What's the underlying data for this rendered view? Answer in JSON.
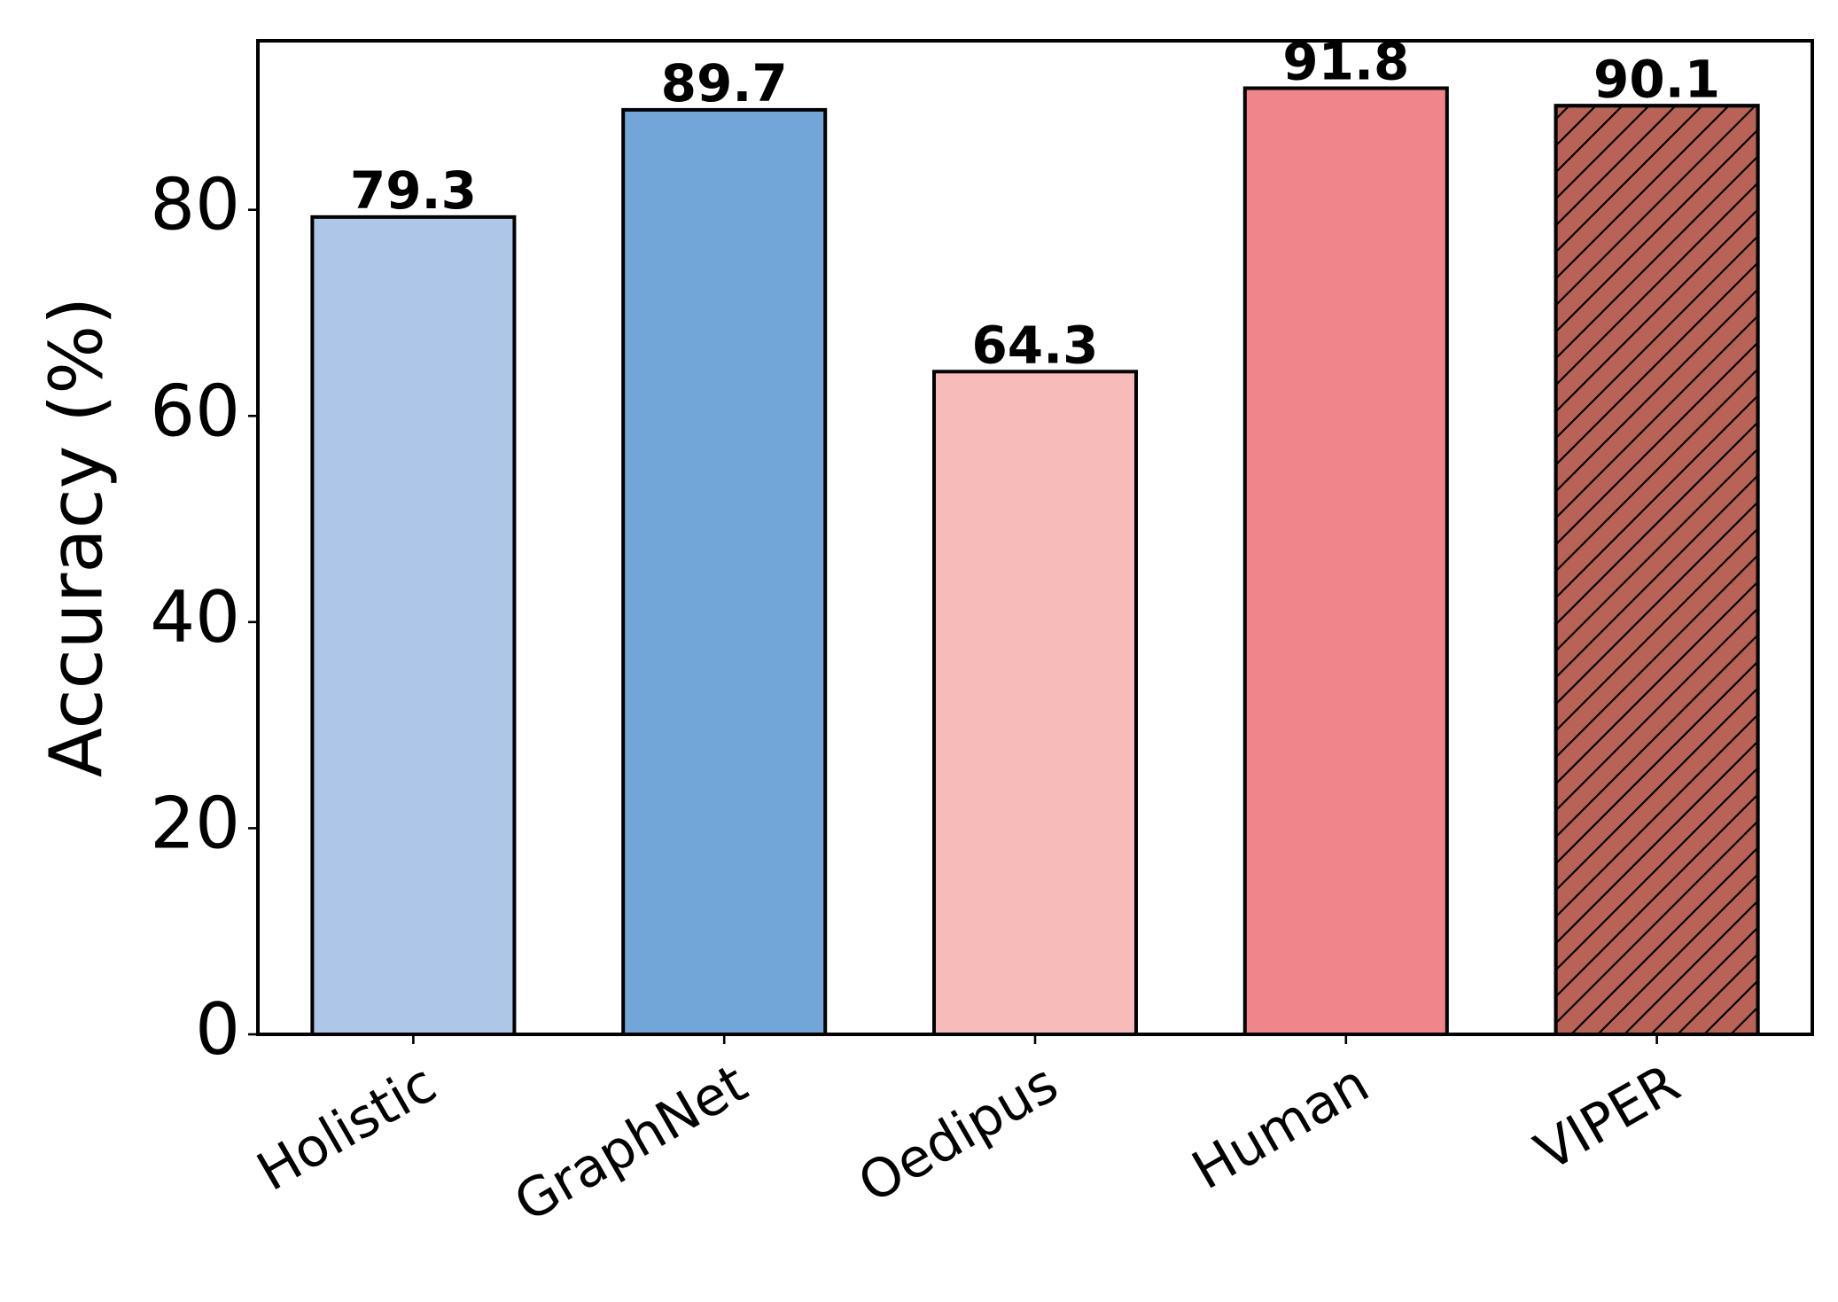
{
  "chart_data": {
    "type": "bar",
    "y_label": "Accuracy (%)",
    "categories": [
      "Holistic",
      "GraphNet",
      "Oedipus",
      "Human",
      "VIPER"
    ],
    "values": [
      79.3,
      89.7,
      64.3,
      91.8,
      90.1
    ],
    "colors": [
      "#aec7e8",
      "#72a6d8",
      "#f7bcb9",
      "#f0868b",
      "#b86355"
    ],
    "hatches": [
      null,
      null,
      null,
      null,
      "//"
    ],
    "ylim": [
      0,
      96.4
    ],
    "yticks": [
      0,
      20,
      40,
      60,
      80
    ],
    "grid": false
  }
}
